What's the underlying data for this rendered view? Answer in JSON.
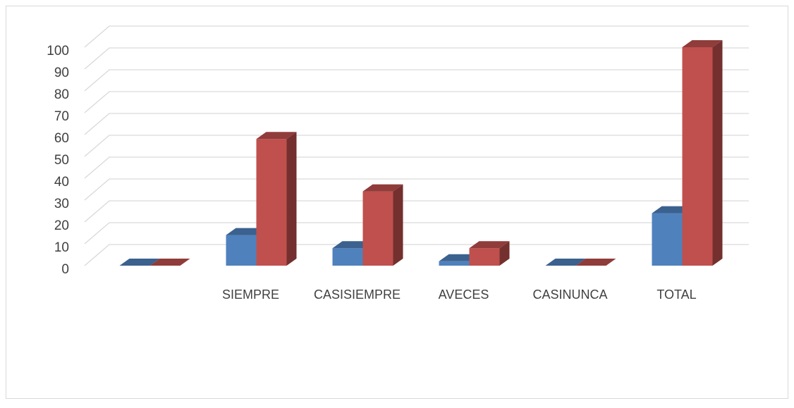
{
  "chart_data": {
    "type": "bar3d",
    "categories": [
      null,
      "SIEMPRE",
      "CASISIEMPRE",
      "AVECES",
      "CASINUNCA",
      "TOTAL"
    ],
    "series": [
      {
        "color": "#4f81bd",
        "values": [
          0,
          14,
          8,
          2,
          0,
          24
        ]
      },
      {
        "color": "#c0504d",
        "values": [
          0,
          58,
          34,
          8,
          0,
          100
        ]
      }
    ],
    "ylim": [
      0,
      100
    ],
    "yticks": [
      0,
      10,
      20,
      30,
      40,
      50,
      60,
      70,
      80,
      90,
      100
    ],
    "grid": true
  }
}
